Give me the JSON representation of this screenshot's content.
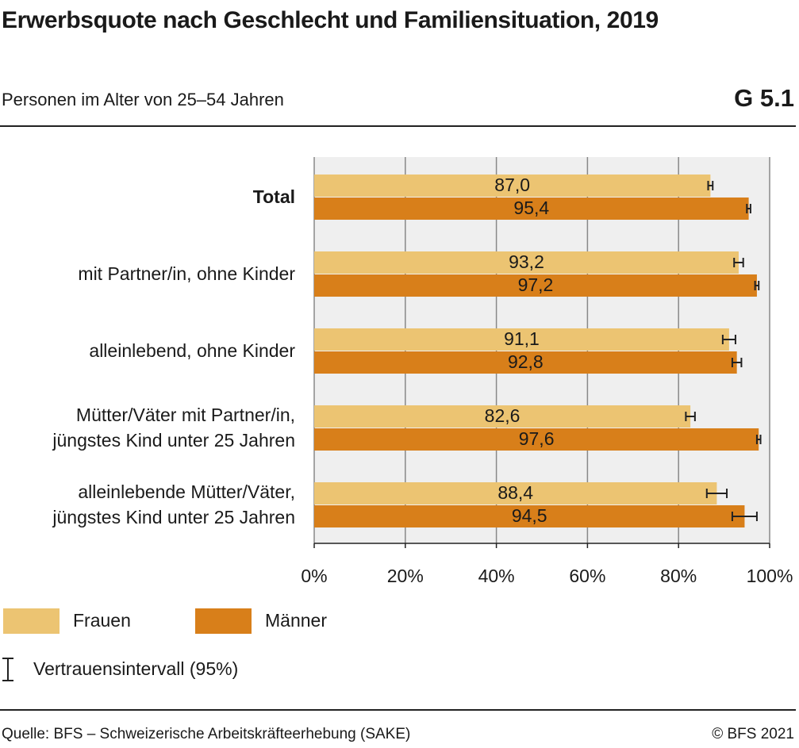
{
  "chart_data": {
    "type": "bar",
    "orientation": "horizontal",
    "title": "Erwerbsquote nach Geschlecht und Familiensituation, 2019",
    "subtitle": "Personen im Alter von 25–54 Jahren",
    "chart_id": "G 5.1",
    "categories": [
      "Total",
      "mit Partner/in, ohne Kinder",
      "alleinlebend, ohne Kinder",
      "Mütter/Väter mit Partner/in,\njüngstes Kind unter 25 Jahren",
      "alleinlebende Mütter/Väter,\njüngstes Kind unter 25 Jahren"
    ],
    "series": [
      {
        "name": "Frauen",
        "color": "#ecc472",
        "values": [
          87.0,
          93.2,
          91.1,
          82.6,
          88.4
        ],
        "value_labels": [
          "87,0",
          "93,2",
          "91,1",
          "82,6",
          "88,4"
        ],
        "errors": [
          0.5,
          1.0,
          1.4,
          1.0,
          2.2
        ]
      },
      {
        "name": "Männer",
        "color": "#d87f1a",
        "values": [
          95.4,
          97.2,
          92.8,
          97.6,
          94.5
        ],
        "value_labels": [
          "95,4",
          "97,2",
          "92,8",
          "97,6",
          "94,5"
        ],
        "errors": [
          0.4,
          0.4,
          1.0,
          0.4,
          2.7
        ]
      }
    ],
    "xlim": [
      0,
      100
    ],
    "xticks": [
      {
        "value": 0,
        "label": "0%"
      },
      {
        "value": 20,
        "label": "20%"
      },
      {
        "value": 40,
        "label": "40%"
      },
      {
        "value": 60,
        "label": "60%"
      },
      {
        "value": 80,
        "label": "80%"
      },
      {
        "value": 100,
        "label": "100%"
      }
    ],
    "grid": true,
    "error_legend": "Vertrauensintervall (95%)",
    "source": "Quelle: BFS – Schweizerische Arbeitskräfteerhebung (SAKE)",
    "copyright": "© BFS 2021"
  }
}
